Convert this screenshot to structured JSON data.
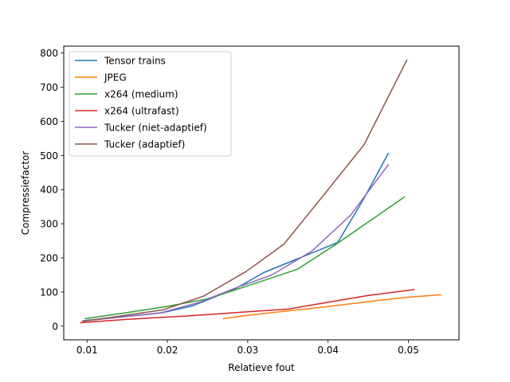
{
  "chart_data": {
    "type": "line",
    "title": "",
    "xlabel": "Relatieve fout",
    "ylabel": "Compressiefactor",
    "xlim": [
      0.0071,
      0.0563
    ],
    "ylim": [
      -40,
      820
    ],
    "xticks": [
      0.01,
      0.02,
      0.03,
      0.04,
      0.05
    ],
    "xtick_labels": [
      "0.01",
      "0.02",
      "0.03",
      "0.04",
      "0.05"
    ],
    "yticks": [
      0,
      100,
      200,
      300,
      400,
      500,
      600,
      700,
      800
    ],
    "ytick_labels": [
      "0",
      "100",
      "200",
      "300",
      "400",
      "500",
      "600",
      "700",
      "800"
    ],
    "grid": false,
    "legend_position": "top-left",
    "series": [
      {
        "name": "Tensor trains",
        "color": "#1f77b4",
        "x": [
          0.0095,
          0.0195,
          0.0232,
          0.0285,
          0.032,
          0.0365,
          0.0412,
          0.0445,
          0.0475
        ],
        "y": [
          16,
          40,
          60,
          110,
          157,
          200,
          245,
          375,
          506
        ]
      },
      {
        "name": "JPEG",
        "color": "#ff7f0e",
        "x": [
          0.027,
          0.03,
          0.034,
          0.038,
          0.042,
          0.046,
          0.05,
          0.054
        ],
        "y": [
          22,
          32,
          42,
          52,
          63,
          75,
          85,
          92
        ]
      },
      {
        "name": "x264 (medium)",
        "color": "#2ca02c",
        "x": [
          0.0098,
          0.015,
          0.02,
          0.025,
          0.03,
          0.0362,
          0.041,
          0.0495
        ],
        "y": [
          22,
          40,
          58,
          80,
          118,
          167,
          240,
          378
        ]
      },
      {
        "name": "x264 (ultrafast)",
        "color": "#d62728",
        "x": [
          0.0092,
          0.015,
          0.0225,
          0.03,
          0.035,
          0.04,
          0.045,
          0.0507
        ],
        "y": [
          10,
          20,
          30,
          42,
          50,
          70,
          90,
          107
        ]
      },
      {
        "name": "Tucker (niet-adaptief)",
        "color": "#9467bd",
        "x": [
          0.0095,
          0.019,
          0.024,
          0.0285,
          0.033,
          0.038,
          0.0428,
          0.0475
        ],
        "y": [
          15,
          38,
          70,
          112,
          150,
          220,
          325,
          473
        ]
      },
      {
        "name": "Tucker (adaptief)",
        "color": "#8c564b",
        "x": [
          0.0095,
          0.0195,
          0.0245,
          0.0298,
          0.0345,
          0.0395,
          0.0445,
          0.0498
        ],
        "y": [
          14,
          48,
          88,
          160,
          240,
          385,
          532,
          779
        ]
      }
    ]
  }
}
